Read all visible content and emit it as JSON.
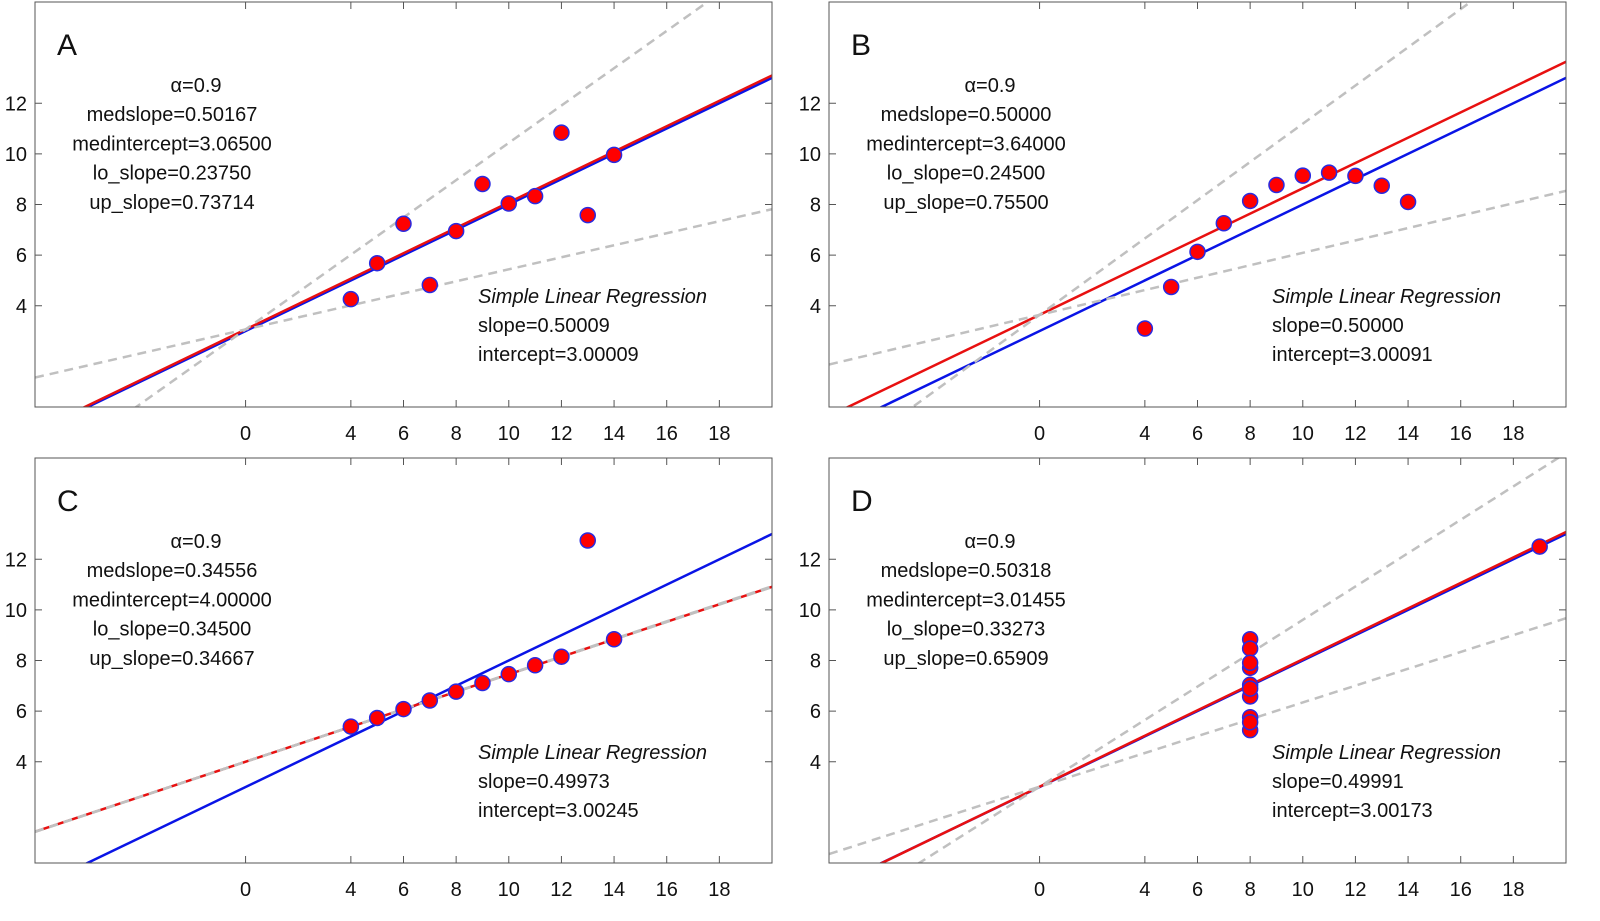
{
  "chart_data": [
    {
      "type": "scatter",
      "panel_label": "A",
      "x": [
        10,
        8,
        13,
        9,
        11,
        14,
        6,
        4,
        12,
        7,
        5
      ],
      "y": [
        8.04,
        6.95,
        7.58,
        8.81,
        8.33,
        9.96,
        7.24,
        4.26,
        10.84,
        4.82,
        5.68
      ],
      "xlim": [
        -8,
        20
      ],
      "ylim": [
        0,
        16
      ],
      "xticks": [
        0,
        4,
        6,
        8,
        10,
        12,
        14,
        16,
        18
      ],
      "yticks": [
        4,
        6,
        8,
        10,
        12
      ],
      "robust": {
        "alpha_label": "α=0.9",
        "medslope": 0.50167,
        "medintercept": 3.065,
        "lo_slope": 0.2375,
        "up_slope": 0.73714,
        "lines": [
          "medslope=0.50167",
          "medintercept=3.06500",
          "lo_slope=0.23750",
          "up_slope=0.73714"
        ]
      },
      "ols": {
        "title": "Simple Linear Regression",
        "slope": 0.50009,
        "intercept": 3.00009,
        "lines": [
          "slope=0.50009",
          "intercept=3.00009"
        ]
      }
    },
    {
      "type": "scatter",
      "panel_label": "B",
      "x": [
        10,
        8,
        13,
        9,
        11,
        14,
        6,
        4,
        12,
        7,
        5
      ],
      "y": [
        9.14,
        8.14,
        8.74,
        8.77,
        9.26,
        8.1,
        6.13,
        3.1,
        9.13,
        7.26,
        4.74
      ],
      "xlim": [
        -8,
        20
      ],
      "ylim": [
        0,
        16
      ],
      "xticks": [
        0,
        4,
        6,
        8,
        10,
        12,
        14,
        16,
        18
      ],
      "yticks": [
        4,
        6,
        8,
        10,
        12
      ],
      "robust": {
        "alpha_label": "α=0.9",
        "medslope": 0.5,
        "medintercept": 3.64,
        "lo_slope": 0.245,
        "up_slope": 0.755,
        "lines": [
          "medslope=0.50000",
          "medintercept=3.64000",
          "lo_slope=0.24500",
          "up_slope=0.75500"
        ]
      },
      "ols": {
        "title": "Simple Linear Regression",
        "slope": 0.5,
        "intercept": 3.00091,
        "lines": [
          "slope=0.50000",
          "intercept=3.00091"
        ]
      }
    },
    {
      "type": "scatter",
      "panel_label": "C",
      "x": [
        10,
        8,
        13,
        9,
        11,
        14,
        6,
        4,
        12,
        7,
        5
      ],
      "y": [
        7.46,
        6.77,
        12.74,
        7.11,
        7.81,
        8.84,
        6.08,
        5.39,
        8.15,
        6.42,
        5.73
      ],
      "xlim": [
        -8,
        20
      ],
      "ylim": [
        0,
        16
      ],
      "xticks": [
        0,
        4,
        6,
        8,
        10,
        12,
        14,
        16,
        18
      ],
      "yticks": [
        4,
        6,
        8,
        10,
        12
      ],
      "robust": {
        "alpha_label": "α=0.9",
        "medslope": 0.34556,
        "medintercept": 4.0,
        "lo_slope": 0.345,
        "up_slope": 0.34667,
        "lines": [
          "medslope=0.34556",
          "medintercept=4.00000",
          "lo_slope=0.34500",
          "up_slope=0.34667"
        ]
      },
      "ols": {
        "title": "Simple Linear Regression",
        "slope": 0.49973,
        "intercept": 3.00245,
        "lines": [
          "slope=0.49973",
          "intercept=3.00245"
        ]
      }
    },
    {
      "type": "scatter",
      "panel_label": "D",
      "x": [
        8,
        8,
        8,
        8,
        8,
        8,
        8,
        19,
        8,
        8,
        8
      ],
      "y": [
        6.58,
        5.76,
        7.71,
        8.84,
        8.47,
        7.04,
        5.25,
        12.5,
        5.56,
        7.91,
        6.89
      ],
      "xlim": [
        -8,
        20
      ],
      "ylim": [
        0,
        16
      ],
      "xticks": [
        0,
        4,
        6,
        8,
        10,
        12,
        14,
        16,
        18
      ],
      "yticks": [
        4,
        6,
        8,
        10,
        12
      ],
      "robust": {
        "alpha_label": "α=0.9",
        "medslope": 0.50318,
        "medintercept": 3.01455,
        "lo_slope": 0.33273,
        "up_slope": 0.65909,
        "lines": [
          "medslope=0.50318",
          "medintercept=3.01455",
          "lo_slope=0.33273",
          "up_slope=0.65909"
        ]
      },
      "ols": {
        "title": "Simple Linear Regression",
        "slope": 0.49991,
        "intercept": 3.00173,
        "lines": [
          "slope=0.49991",
          "intercept=3.00173"
        ]
      }
    }
  ],
  "colors": {
    "ols_line": "#0a14e6",
    "robust_line": "#e81010",
    "bound_line": "#c0c0c0",
    "point_fill": "#ff0000",
    "point_edge": "#2a2ae0",
    "axis": "#555555"
  }
}
